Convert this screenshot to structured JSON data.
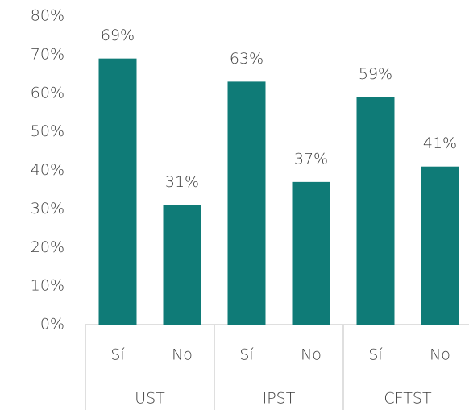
{
  "chart_data": {
    "type": "bar",
    "categories": [
      "Sí",
      "No",
      "Sí",
      "No",
      "Sí",
      "No"
    ],
    "groups": [
      "UST",
      "IPST",
      "CFTST"
    ],
    "values": [
      69,
      31,
      63,
      37,
      59,
      41
    ],
    "value_labels": [
      "69%",
      "31%",
      "63%",
      "37%",
      "59%",
      "41%"
    ],
    "color": "#0f7b77",
    "ylim": [
      0,
      80
    ],
    "yticks": [
      {
        "value": 0,
        "label": "0%"
      },
      {
        "value": 10,
        "label": "10%"
      },
      {
        "value": 20,
        "label": "20%"
      },
      {
        "value": 30,
        "label": "30%"
      },
      {
        "value": 40,
        "label": "40%"
      },
      {
        "value": 50,
        "label": "50%"
      },
      {
        "value": 60,
        "label": "60%"
      },
      {
        "value": 70,
        "label": "70%"
      },
      {
        "value": 80,
        "label": "80%"
      }
    ],
    "grid": false
  }
}
